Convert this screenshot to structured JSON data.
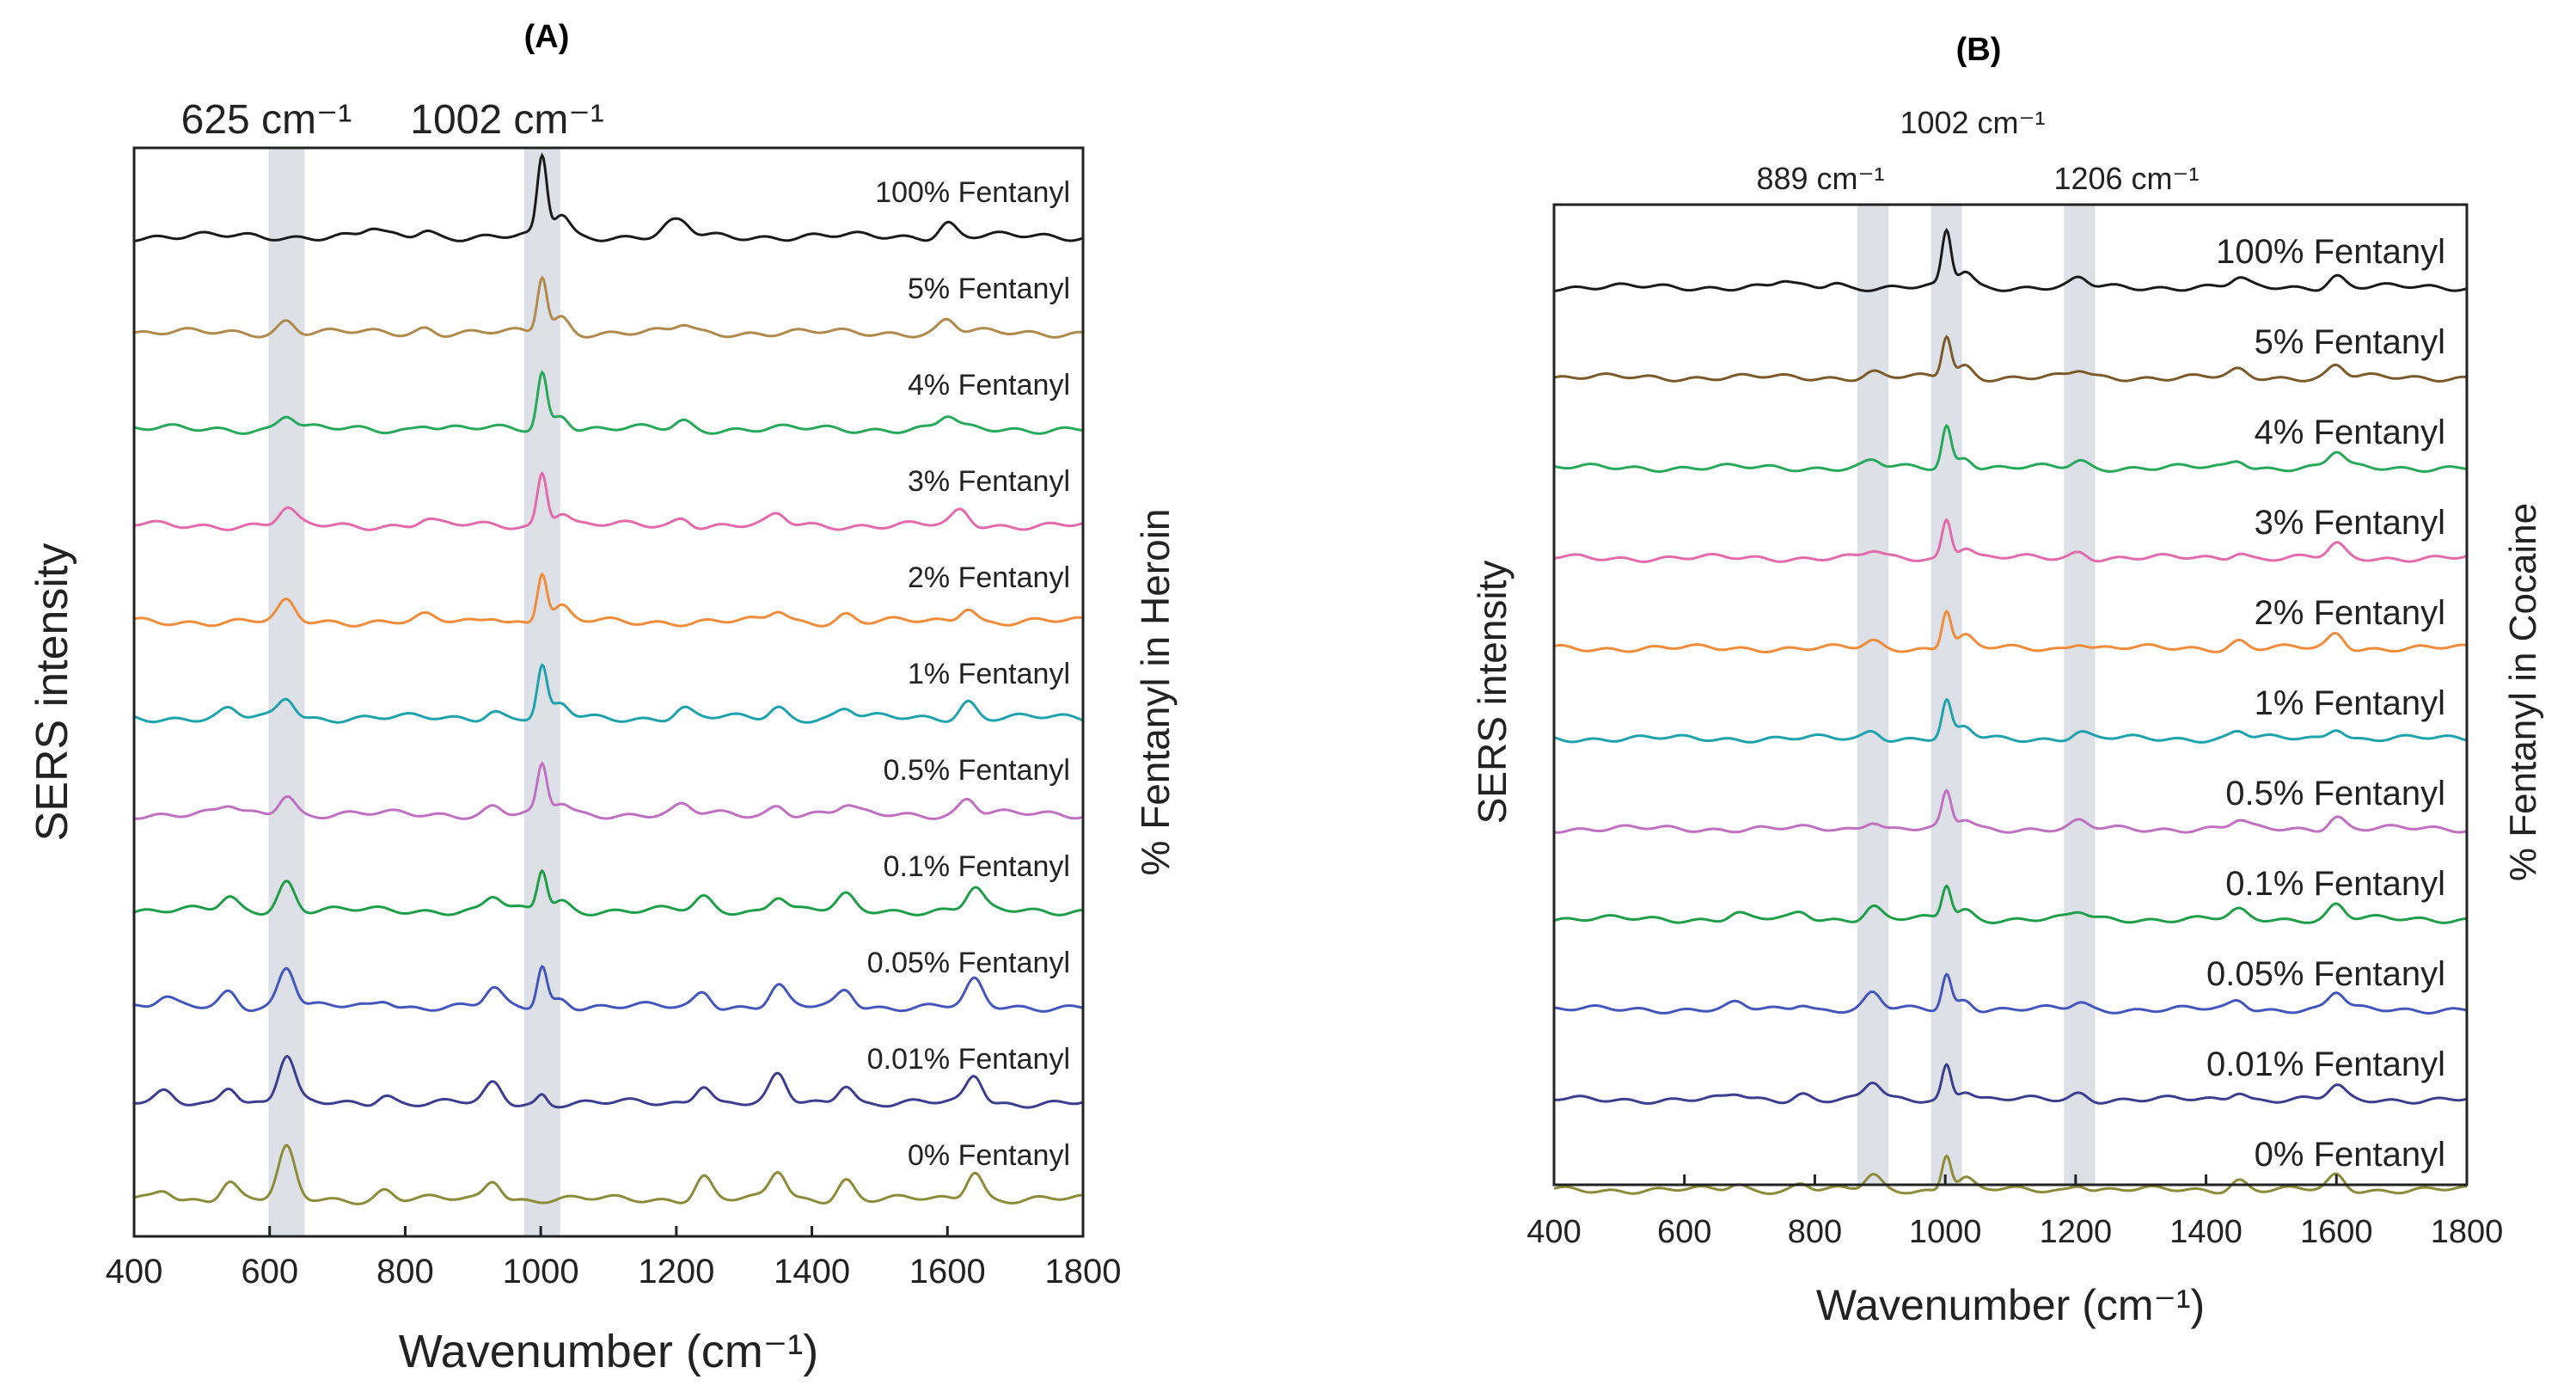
{
  "chart_data": [
    {
      "type": "line",
      "panel_label": "(A)",
      "title": "",
      "xlabel": "Wavenumber (cm⁻¹)",
      "ylabel": "SERS intensity",
      "right_label": "% Fentanyl in Heroin",
      "xlim": [
        400,
        1800
      ],
      "xticks": [
        400,
        600,
        800,
        1000,
        1200,
        1400,
        1600,
        1800
      ],
      "grid": false,
      "highlight_bands": [
        625,
        1002
      ],
      "band_labels": [
        "625 cm⁻¹",
        "1002 cm⁻¹"
      ],
      "series": [
        {
          "name": "100% Fentanyl",
          "color": "#1a1a1a",
          "baseline": 0.5,
          "peaks": [
            [
              750,
              0.45
            ],
            [
              830,
              0.4
            ],
            [
              1002,
              5.0
            ],
            [
              1030,
              1.4
            ],
            [
              1190,
              0.6
            ],
            [
              1210,
              0.7
            ],
            [
              1600,
              0.9
            ]
          ]
        },
        {
          "name": "5% Fentanyl",
          "color": "#b08a4c",
          "baseline": 0.5,
          "peaks": [
            [
              625,
              0.8
            ],
            [
              830,
              0.35
            ],
            [
              1002,
              3.6
            ],
            [
              1030,
              1.0
            ],
            [
              1210,
              0.5
            ],
            [
              1600,
              0.8
            ]
          ]
        },
        {
          "name": "4% Fentanyl",
          "color": "#27a85a",
          "baseline": 0.5,
          "peaks": [
            [
              625,
              0.9
            ],
            [
              830,
              0.35
            ],
            [
              1002,
              3.6
            ],
            [
              1030,
              1.0
            ],
            [
              1210,
              0.5
            ],
            [
              1600,
              0.8
            ]
          ]
        },
        {
          "name": "3% Fentanyl",
          "color": "#e46bab",
          "baseline": 0.5,
          "peaks": [
            [
              625,
              1.0
            ],
            [
              830,
              0.35
            ],
            [
              1002,
              3.4
            ],
            [
              1030,
              0.9
            ],
            [
              1210,
              0.5
            ],
            [
              1350,
              0.6
            ],
            [
              1620,
              0.9
            ]
          ]
        },
        {
          "name": "2% Fentanyl",
          "color": "#f08c3a",
          "baseline": 0.5,
          "peaks": [
            [
              625,
              1.2
            ],
            [
              830,
              0.3
            ],
            [
              930,
              0.4
            ],
            [
              1002,
              3.2
            ],
            [
              1030,
              0.9
            ],
            [
              1350,
              0.7
            ],
            [
              1450,
              0.5
            ],
            [
              1630,
              1.0
            ]
          ]
        },
        {
          "name": "1% Fentanyl",
          "color": "#1ea3ad",
          "baseline": 0.5,
          "peaks": [
            [
              540,
              0.5
            ],
            [
              625,
              1.3
            ],
            [
              930,
              0.5
            ],
            [
              1002,
              3.2
            ],
            [
              1030,
              0.8
            ],
            [
              1210,
              0.6
            ],
            [
              1350,
              0.7
            ],
            [
              1450,
              0.6
            ],
            [
              1630,
              1.1
            ]
          ]
        },
        {
          "name": "0.5% Fentanyl",
          "color": "#c070c0",
          "baseline": 0.5,
          "peaks": [
            [
              540,
              0.5
            ],
            [
              625,
              1.3
            ],
            [
              930,
              0.5
            ],
            [
              1002,
              3.0
            ],
            [
              1030,
              0.7
            ],
            [
              1210,
              0.5
            ],
            [
              1350,
              0.6
            ],
            [
              1450,
              0.5
            ],
            [
              1630,
              1.0
            ]
          ]
        },
        {
          "name": "0.1% Fentanyl",
          "color": "#1f9e4a",
          "baseline": 0.5,
          "peaks": [
            [
              540,
              0.8
            ],
            [
              625,
              1.9
            ],
            [
              930,
              0.9
            ],
            [
              1002,
              2.6
            ],
            [
              1030,
              0.6
            ],
            [
              1240,
              0.8
            ],
            [
              1350,
              1.0
            ],
            [
              1450,
              0.9
            ],
            [
              1640,
              1.4
            ]
          ]
        },
        {
          "name": "0.05% Fentanyl",
          "color": "#4455bb",
          "baseline": 0.5,
          "peaks": [
            [
              445,
              0.5
            ],
            [
              540,
              1.0
            ],
            [
              625,
              2.6
            ],
            [
              770,
              0.5
            ],
            [
              930,
              1.1
            ],
            [
              1002,
              2.6
            ],
            [
              1030,
              0.6
            ],
            [
              1240,
              1.0
            ],
            [
              1350,
              1.3
            ],
            [
              1450,
              1.1
            ],
            [
              1640,
              1.6
            ]
          ]
        },
        {
          "name": "0.01% Fentanyl",
          "color": "#3d3d8f",
          "baseline": 0.5,
          "peaks": [
            [
              445,
              0.6
            ],
            [
              540,
              1.2
            ],
            [
              625,
              3.0
            ],
            [
              770,
              0.6
            ],
            [
              930,
              1.2
            ],
            [
              1002,
              0.6
            ],
            [
              1240,
              1.3
            ],
            [
              1350,
              1.7
            ],
            [
              1450,
              1.3
            ],
            [
              1640,
              1.8
            ]
          ]
        },
        {
          "name": "0% Fentanyl",
          "color": "#8b8c3a",
          "baseline": 0.5,
          "peaks": [
            [
              445,
              0.6
            ],
            [
              540,
              1.2
            ],
            [
              625,
              3.2
            ],
            [
              770,
              0.6
            ],
            [
              930,
              1.3
            ],
            [
              1240,
              1.5
            ],
            [
              1350,
              1.8
            ],
            [
              1450,
              1.3
            ],
            [
              1640,
              1.9
            ]
          ]
        }
      ]
    },
    {
      "type": "line",
      "panel_label": "(B)",
      "title": "",
      "xlabel": "Wavenumber (cm⁻¹)",
      "ylabel": "SERS intensity",
      "right_label": "% Fentanyl in Cocaine",
      "xlim": [
        400,
        1800
      ],
      "xticks": [
        400,
        600,
        800,
        1000,
        1200,
        1400,
        1600,
        1800
      ],
      "grid": false,
      "highlight_bands": [
        889,
        1002,
        1206
      ],
      "band_labels": [
        "889 cm⁻¹",
        "1002 cm⁻¹",
        "1206 cm⁻¹"
      ],
      "series": [
        {
          "name": "100% Fentanyl",
          "color": "#1a1a1a",
          "baseline": 0.5,
          "peaks": [
            [
              750,
              0.4
            ],
            [
              830,
              0.35
            ],
            [
              1002,
              4.2
            ],
            [
              1030,
              1.2
            ],
            [
              1206,
              0.6
            ],
            [
              1450,
              0.6
            ],
            [
              1600,
              0.9
            ]
          ]
        },
        {
          "name": "5% Fentanyl",
          "color": "#7a5a2a",
          "baseline": 0.5,
          "peaks": [
            [
              889,
              0.4
            ],
            [
              1002,
              3.2
            ],
            [
              1030,
              0.9
            ],
            [
              1206,
              0.5
            ],
            [
              1450,
              0.5
            ],
            [
              1600,
              0.9
            ]
          ]
        },
        {
          "name": "4% Fentanyl",
          "color": "#27a85a",
          "baseline": 0.5,
          "peaks": [
            [
              889,
              0.5
            ],
            [
              1002,
              3.2
            ],
            [
              1030,
              0.9
            ],
            [
              1206,
              0.5
            ],
            [
              1450,
              0.6
            ],
            [
              1600,
              1.2
            ]
          ]
        },
        {
          "name": "3% Fentanyl",
          "color": "#e46bab",
          "baseline": 0.5,
          "peaks": [
            [
              889,
              0.5
            ],
            [
              1002,
              3.0
            ],
            [
              1030,
              0.9
            ],
            [
              1206,
              0.5
            ],
            [
              1450,
              0.5
            ],
            [
              1600,
              1.0
            ]
          ]
        },
        {
          "name": "2% Fentanyl",
          "color": "#f08c3a",
          "baseline": 0.5,
          "peaks": [
            [
              889,
              0.5
            ],
            [
              1002,
              3.0
            ],
            [
              1030,
              0.9
            ],
            [
              1206,
              0.5
            ],
            [
              1450,
              0.6
            ],
            [
              1600,
              1.1
            ]
          ]
        },
        {
          "name": "1% Fentanyl",
          "color": "#1ea3ad",
          "baseline": 0.5,
          "peaks": [
            [
              889,
              0.6
            ],
            [
              1002,
              2.8
            ],
            [
              1030,
              0.8
            ],
            [
              1206,
              0.5
            ],
            [
              1450,
              0.6
            ],
            [
              1600,
              0.9
            ]
          ]
        },
        {
          "name": "0.5% Fentanyl",
          "color": "#c070c0",
          "baseline": 0.5,
          "peaks": [
            [
              889,
              0.7
            ],
            [
              1002,
              2.7
            ],
            [
              1030,
              0.7
            ],
            [
              1206,
              0.5
            ],
            [
              1450,
              0.6
            ],
            [
              1600,
              1.0
            ]
          ]
        },
        {
          "name": "0.1% Fentanyl",
          "color": "#1f9e4a",
          "baseline": 0.5,
          "peaks": [
            [
              680,
              0.4
            ],
            [
              780,
              0.5
            ],
            [
              889,
              1.0
            ],
            [
              1002,
              2.6
            ],
            [
              1030,
              0.7
            ],
            [
              1206,
              0.5
            ],
            [
              1450,
              0.6
            ],
            [
              1600,
              1.1
            ]
          ]
        },
        {
          "name": "0.05% Fentanyl",
          "color": "#4455bb",
          "baseline": 0.5,
          "peaks": [
            [
              680,
              0.4
            ],
            [
              780,
              0.5
            ],
            [
              889,
              1.2
            ],
            [
              1002,
              2.7
            ],
            [
              1030,
              0.8
            ],
            [
              1206,
              0.5
            ],
            [
              1450,
              0.7
            ],
            [
              1600,
              1.3
            ]
          ]
        },
        {
          "name": "0.01% Fentanyl",
          "color": "#3d3d8f",
          "baseline": 0.5,
          "peaks": [
            [
              680,
              0.4
            ],
            [
              780,
              0.5
            ],
            [
              889,
              1.3
            ],
            [
              1002,
              2.7
            ],
            [
              1030,
              0.8
            ],
            [
              1206,
              0.5
            ],
            [
              1450,
              0.7
            ],
            [
              1600,
              1.0
            ]
          ]
        },
        {
          "name": "0% Fentanyl",
          "color": "#8b8c3a",
          "baseline": 0.5,
          "peaks": [
            [
              680,
              0.4
            ],
            [
              780,
              0.5
            ],
            [
              889,
              1.1
            ],
            [
              1002,
              2.8
            ],
            [
              1030,
              0.9
            ],
            [
              1206,
              0.5
            ],
            [
              1450,
              0.8
            ],
            [
              1600,
              1.1
            ]
          ]
        }
      ]
    }
  ]
}
